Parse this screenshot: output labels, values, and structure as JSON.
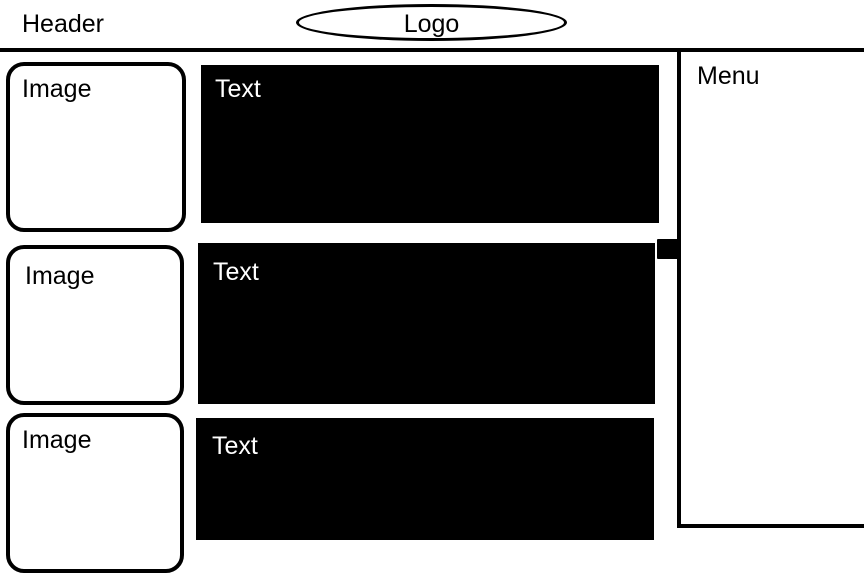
{
  "header": {
    "label": "Header",
    "logo_label": "Logo"
  },
  "rows": [
    {
      "image_label": "Image",
      "text_label": "Text"
    },
    {
      "image_label": "Image",
      "text_label": "Text"
    },
    {
      "image_label": "Image",
      "text_label": "Text"
    }
  ],
  "menu": {
    "label": "Menu"
  },
  "colors": {
    "background": "#ffffff",
    "stroke": "#000000",
    "block_fill": "#000000",
    "block_text": "#ffffff"
  },
  "icons": {
    "arrow": "arrow-right-icon"
  }
}
